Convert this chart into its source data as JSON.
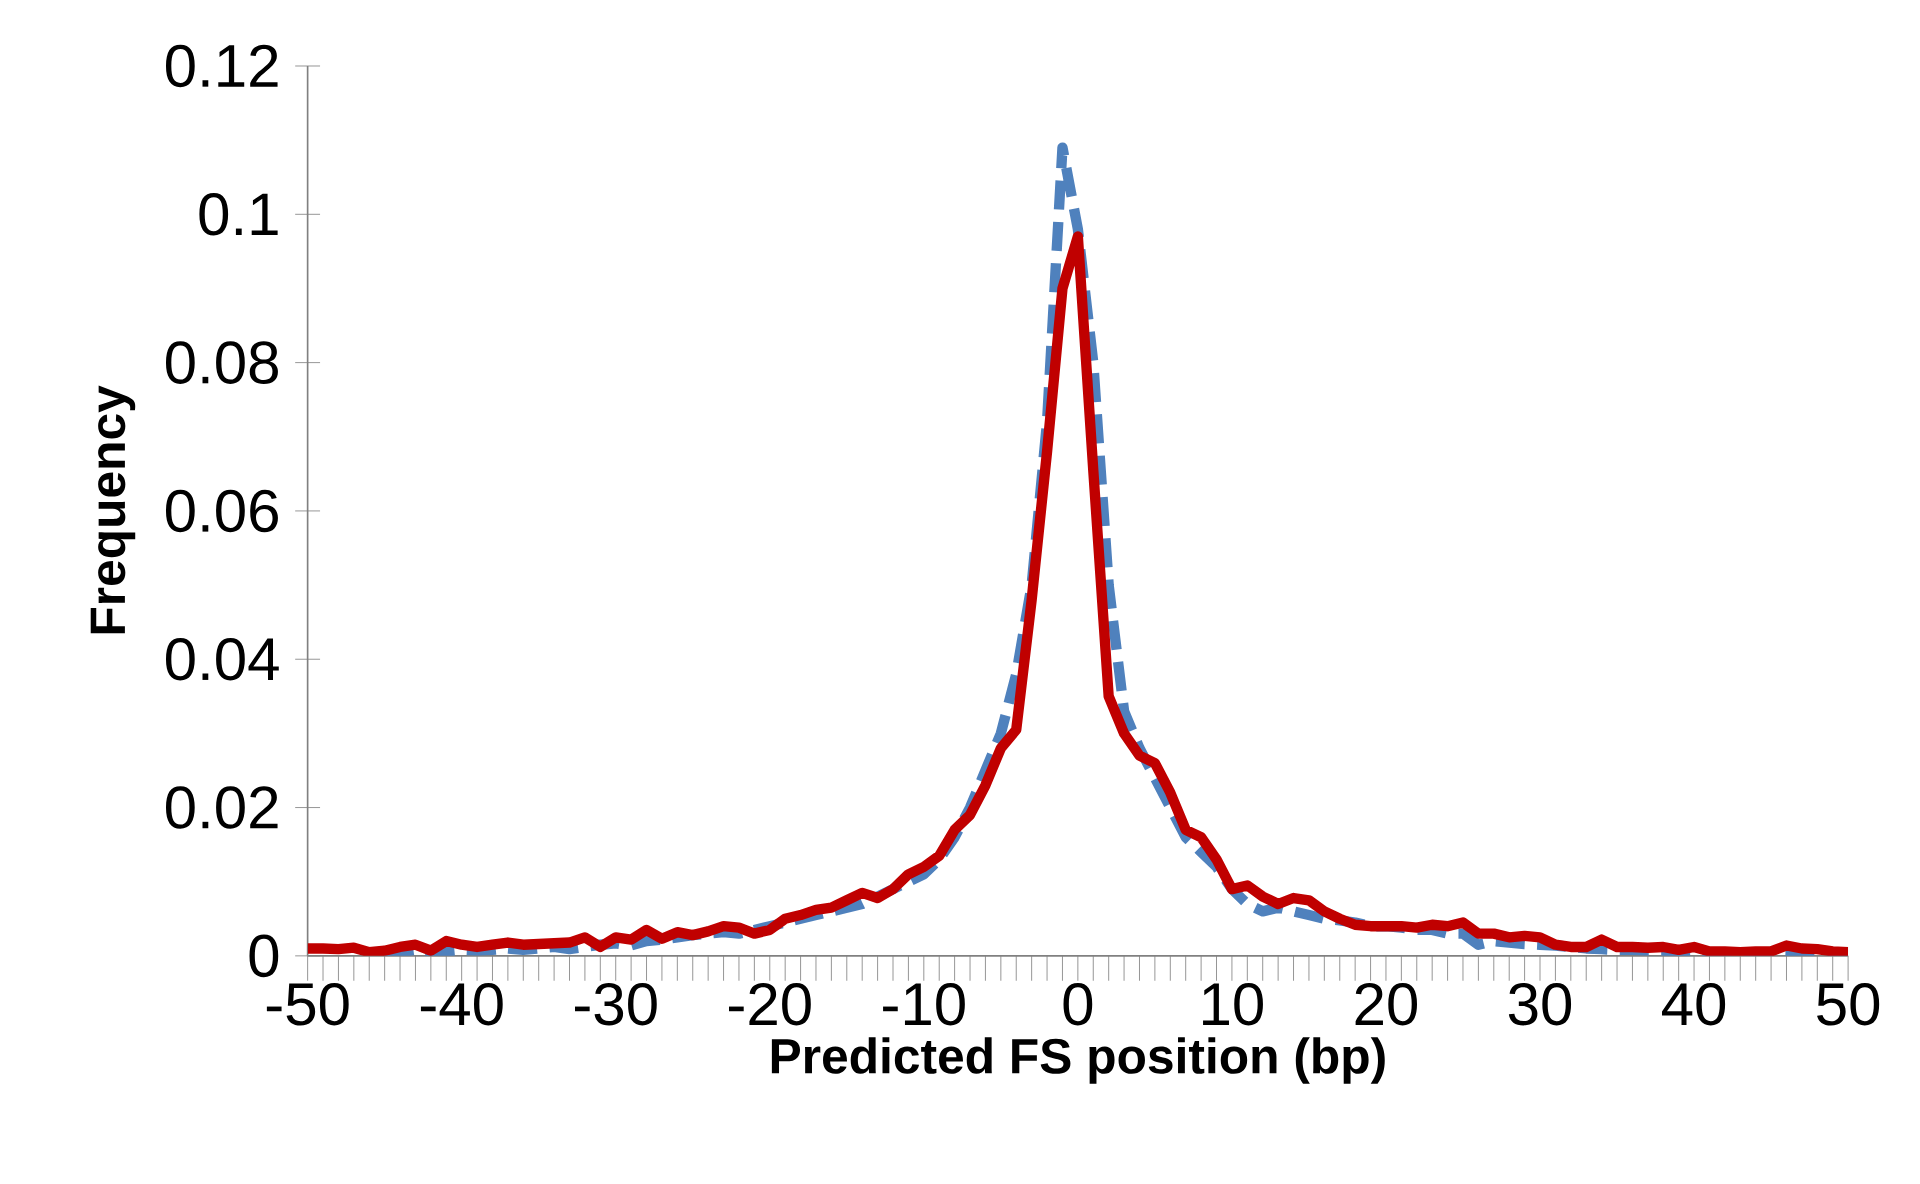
{
  "chart_data": {
    "type": "line",
    "xlabel": "Predicted FS position (bp)",
    "ylabel": "Frequency",
    "x": [
      -50,
      -49,
      -48,
      -47,
      -46,
      -45,
      -44,
      -43,
      -42,
      -41,
      -40,
      -39,
      -38,
      -37,
      -36,
      -35,
      -34,
      -33,
      -32,
      -31,
      -30,
      -29,
      -28,
      -27,
      -26,
      -25,
      -24,
      -23,
      -22,
      -21,
      -20,
      -19,
      -18,
      -17,
      -16,
      -15,
      -14,
      -13,
      -12,
      -11,
      -10,
      -9,
      -8,
      -7,
      -6,
      -5,
      -4,
      -3,
      -2,
      -1,
      0,
      1,
      2,
      3,
      4,
      5,
      6,
      7,
      8,
      9,
      10,
      11,
      12,
      13,
      14,
      15,
      16,
      17,
      18,
      19,
      20,
      21,
      22,
      23,
      24,
      25,
      26,
      27,
      28,
      29,
      30,
      31,
      32,
      33,
      34,
      35,
      36,
      37,
      38,
      39,
      40,
      41,
      42,
      43,
      44,
      45,
      46,
      47,
      48,
      49,
      50
    ],
    "series": [
      {
        "color": "#4f81bd",
        "line_style": "dashed",
        "values": [
          null,
          null,
          null,
          null,
          null,
          0.0003,
          0.0005,
          0.0008,
          0.0004,
          0.0006,
          0.0008,
          0.0007,
          0.0008,
          0.001,
          0.0008,
          0.001,
          0.0012,
          0.0009,
          0.0012,
          0.0015,
          0.0017,
          0.0014,
          0.002,
          0.0022,
          0.0025,
          0.0028,
          0.003,
          0.0032,
          0.003,
          0.0035,
          0.004,
          0.0045,
          0.005,
          0.0055,
          0.006,
          0.0065,
          0.007,
          0.008,
          0.009,
          0.01,
          0.011,
          0.013,
          0.016,
          0.02,
          0.025,
          0.03,
          0.038,
          0.05,
          0.072,
          0.109,
          0.098,
          0.08,
          0.05,
          0.033,
          0.028,
          0.024,
          0.02,
          0.016,
          0.014,
          0.012,
          0.009,
          0.007,
          0.006,
          0.0065,
          0.006,
          0.0055,
          0.005,
          0.0048,
          0.0045,
          0.004,
          0.004,
          0.0038,
          0.0035,
          0.0035,
          0.003,
          0.003,
          0.0015,
          0.002,
          0.0018,
          0.0016,
          0.0015,
          0.0014,
          0.0012,
          0.001,
          0.0009,
          0.0008,
          0.0008,
          0.0007,
          0.0007,
          0.0006,
          0.0006,
          0.0005,
          0.0005,
          0.0004,
          0.0004,
          0.0004,
          0.0003,
          0.0003,
          0.0003,
          0.0003,
          0.0002
        ]
      },
      {
        "color": "#c00000",
        "line_style": "solid",
        "values": [
          0.001,
          0.001,
          0.0009,
          0.0011,
          0.0005,
          0.0007,
          0.0012,
          0.0015,
          0.0007,
          0.002,
          0.0015,
          0.0012,
          0.0015,
          0.0018,
          0.0015,
          0.0016,
          0.0017,
          0.0018,
          0.0025,
          0.0012,
          0.0025,
          0.0022,
          0.0035,
          0.0023,
          0.0032,
          0.0028,
          0.0033,
          0.004,
          0.0038,
          0.003,
          0.0035,
          0.005,
          0.0055,
          0.0062,
          0.0065,
          0.0075,
          0.0085,
          0.0078,
          0.009,
          0.011,
          0.012,
          0.0135,
          0.017,
          0.019,
          0.023,
          0.028,
          0.0305,
          0.048,
          0.068,
          0.09,
          0.097,
          0.0655,
          0.035,
          0.03,
          0.027,
          0.026,
          0.022,
          0.017,
          0.016,
          0.013,
          0.009,
          0.0095,
          0.008,
          0.007,
          0.0078,
          0.0075,
          0.006,
          0.005,
          0.0042,
          0.004,
          0.004,
          0.004,
          0.0038,
          0.0042,
          0.004,
          0.0045,
          0.003,
          0.003,
          0.0025,
          0.0027,
          0.0025,
          0.0015,
          0.0012,
          0.0012,
          0.0022,
          0.0012,
          0.0012,
          0.0011,
          0.0012,
          0.0008,
          0.0012,
          0.0006,
          0.0006,
          0.0005,
          0.0006,
          0.0006,
          0.0014,
          0.001,
          0.0009,
          0.0006,
          0.0005
        ]
      }
    ],
    "xlim": [
      -50,
      50
    ],
    "ylim": [
      0,
      0.12
    ],
    "xticks": [
      -50,
      -40,
      -30,
      -20,
      -10,
      0,
      10,
      20,
      30,
      40,
      50
    ],
    "yticks": [
      0,
      0.02,
      0.04,
      0.06,
      0.08,
      0.1,
      0.12
    ],
    "grid": false,
    "marker": "none"
  }
}
